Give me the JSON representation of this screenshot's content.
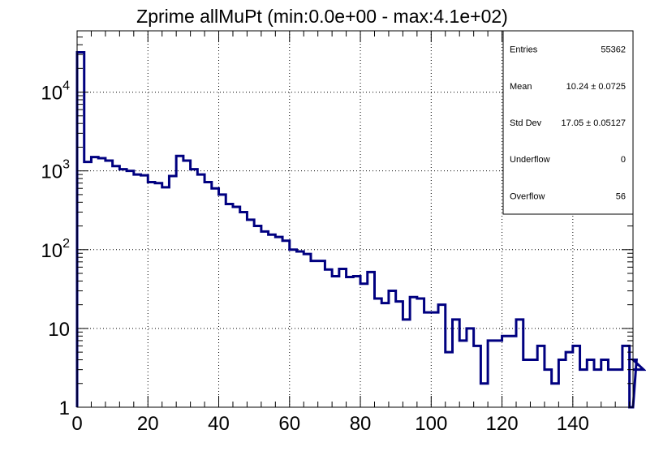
{
  "chart_data": {
    "type": "histogram",
    "title": "Zprime allMuPt (min:0.0e+00 - max:4.1e+02)",
    "xlabel": "",
    "ylabel": "",
    "xlim": [
      0,
      157
    ],
    "ylim": [
      1,
      60000
    ],
    "y_scale": "log",
    "grid": true,
    "line_color": "#000080",
    "bin_width": 2,
    "bin_values": [
      32000,
      1300,
      1500,
      1450,
      1350,
      1150,
      1050,
      1000,
      900,
      880,
      720,
      700,
      620,
      860,
      1550,
      1350,
      1050,
      900,
      720,
      600,
      500,
      380,
      350,
      300,
      240,
      200,
      170,
      155,
      145,
      130,
      100,
      95,
      88,
      72,
      72,
      56,
      46,
      57,
      45,
      46,
      37,
      52,
      24,
      21,
      30,
      22,
      13,
      25,
      24,
      16,
      16,
      20,
      5,
      13,
      7,
      10,
      6,
      2,
      7,
      7,
      8,
      8,
      13,
      4,
      4,
      6,
      3,
      2,
      4,
      5,
      6,
      3,
      4,
      3,
      4,
      3,
      3,
      6,
      1,
      4,
      3
    ],
    "x_tick_labels": [
      "0",
      "20",
      "40",
      "60",
      "80",
      "100",
      "120",
      "140"
    ],
    "x_tick_values": [
      0,
      20,
      40,
      60,
      80,
      100,
      120,
      140
    ],
    "y_tick_labels": [
      {
        "value": 1,
        "base": "1",
        "exp": ""
      },
      {
        "value": 10,
        "base": "10",
        "exp": ""
      },
      {
        "value": 100,
        "base": "10",
        "exp": "2"
      },
      {
        "value": 1000,
        "base": "10",
        "exp": "3"
      },
      {
        "value": 10000,
        "base": "10",
        "exp": "4"
      }
    ],
    "legend_placement": "top-right"
  },
  "stats": {
    "rows": [
      {
        "label": "Entries",
        "value": "55362"
      },
      {
        "label": "Mean",
        "value": "10.24 ± 0.0725"
      },
      {
        "label": "Std Dev",
        "value": "17.05 ± 0.05127"
      },
      {
        "label": "Underflow",
        "value": "0"
      },
      {
        "label": "Overflow",
        "value": "56"
      }
    ]
  }
}
